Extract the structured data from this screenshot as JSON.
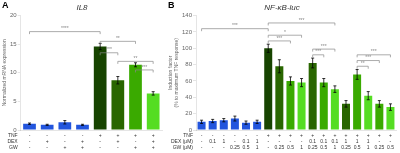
{
  "chart_data": [
    {
      "type": "bar",
      "panel": "A",
      "title": "IL8",
      "ylabel": "Normalized mRNA expression",
      "categories": [
        [
          "-",
          "-",
          "-"
        ],
        [
          "-",
          "+",
          "-"
        ],
        [
          "-",
          "-",
          "+"
        ],
        [
          "-",
          "+",
          "+"
        ],
        [
          "+",
          "-",
          "-"
        ],
        [
          "+",
          "+",
          "-"
        ],
        [
          "+",
          "-",
          "+"
        ],
        [
          "+",
          "+",
          "+"
        ]
      ],
      "row_labels": [
        "TNF",
        "DEX",
        "GW"
      ],
      "values": [
        1.1,
        0.9,
        1.35,
        0.9,
        14.6,
        8.7,
        11.4,
        6.4
      ],
      "errors": [
        0.12,
        0.1,
        0.3,
        0.1,
        0.55,
        0.65,
        0.35,
        0.3
      ],
      "colors": [
        "#2255dd",
        "#2255dd",
        "#2255dd",
        "#2255dd",
        "#174400",
        "#296600",
        "#3aaa00",
        "#55dd22"
      ],
      "ylim": [
        0,
        20
      ],
      "yticks": [
        0,
        5,
        10,
        15,
        20
      ],
      "grid": false,
      "annotations": [
        {
          "text": "****",
          "from": 1,
          "to": 5,
          "y": 17.2
        },
        {
          "text": "**",
          "from": 5,
          "to": 7,
          "y": 15.5
        },
        {
          "text": "***",
          "from": 5,
          "to": 6,
          "y": 13.5
        },
        {
          "text": "**",
          "from": 6,
          "to": 8,
          "y": 12.0
        },
        {
          "text": "***",
          "from": 7,
          "to": 8,
          "y": 10.5
        }
      ]
    },
    {
      "type": "bar",
      "panel": "B",
      "title": "NF-κB-luc",
      "ylabel": "Induction factor\n(% to maximum TNF response)",
      "categories": [
        [
          "-",
          "-",
          "-"
        ],
        [
          "-",
          "0.1",
          "-"
        ],
        [
          "-",
          "1",
          "-"
        ],
        [
          "-",
          "-",
          "0.25"
        ],
        [
          "-",
          "0.1",
          "0.5"
        ],
        [
          "-",
          "1",
          "1"
        ],
        [
          "+",
          "-",
          "-"
        ],
        [
          "+",
          "-",
          "0.25"
        ],
        [
          "+",
          "-",
          "0.5"
        ],
        [
          "+",
          "-",
          "1"
        ],
        [
          "+",
          "0.1",
          "0.25"
        ],
        [
          "+",
          "0.1",
          "0.5"
        ],
        [
          "+",
          "0.1",
          "1"
        ],
        [
          "+",
          "1",
          "0.25"
        ],
        [
          "+",
          "1",
          "0.5"
        ],
        [
          "+",
          "1",
          "1"
        ],
        [
          "+",
          "-",
          "0.25"
        ],
        [
          "+",
          "-",
          "0.5"
        ]
      ],
      "row_labels": [
        "TNF",
        "DEX (μM)",
        "GW (μM)"
      ],
      "values": [
        10,
        11,
        12,
        14,
        9,
        10,
        100,
        78,
        60,
        58,
        82,
        58,
        50,
        32,
        68,
        42,
        32,
        28
      ],
      "errors": [
        2,
        2,
        2,
        3,
        2,
        2,
        5,
        8,
        5,
        5,
        6,
        5,
        4,
        4,
        6,
        5,
        4,
        4
      ],
      "colors": [
        "#2255dd",
        "#2255dd",
        "#2255dd",
        "#2255dd",
        "#2255dd",
        "#2255dd",
        "#174400",
        "#296600",
        "#3aaa00",
        "#55dd22",
        "#296600",
        "#3aaa00",
        "#55dd22",
        "#296600",
        "#3aaa00",
        "#55dd22",
        "#3aaa00",
        "#55dd22"
      ],
      "ylim": [
        0,
        140
      ],
      "yticks": [
        0,
        20,
        40,
        60,
        80,
        100,
        120,
        140
      ],
      "grid": false,
      "annotations": [
        {
          "text": "***",
          "from": 1,
          "to": 7,
          "y": 124
        },
        {
          "text": "***",
          "from": 7,
          "to": 13,
          "y": 131
        },
        {
          "text": "***",
          "from": 7,
          "to": 9,
          "y": 109
        },
        {
          "text": "*",
          "from": 7,
          "to": 10,
          "y": 116
        },
        {
          "text": "***",
          "from": 11,
          "to": 12,
          "y": 92
        },
        {
          "text": "***",
          "from": 11,
          "to": 13,
          "y": 99
        },
        {
          "text": "**",
          "from": 15,
          "to": 16,
          "y": 78
        },
        {
          "text": "***",
          "from": 15,
          "to": 17,
          "y": 85
        },
        {
          "text": "***",
          "from": 15,
          "to": 18,
          "y": 92
        }
      ]
    }
  ]
}
